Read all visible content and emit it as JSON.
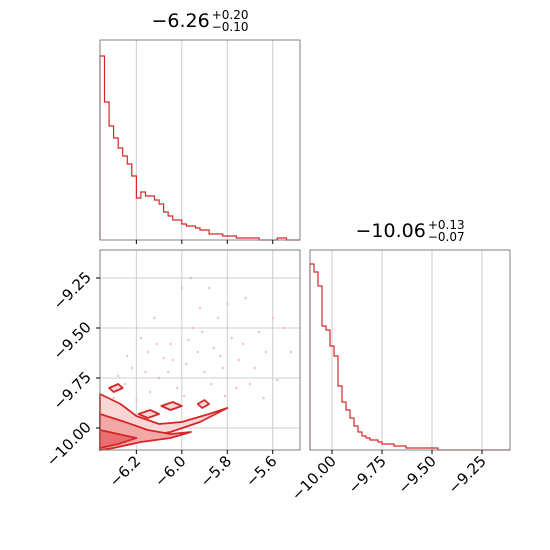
{
  "chart_data": [
    {
      "type": "histogram",
      "panel": "top-left",
      "title": {
        "main": "−6.26",
        "upper": "+0.20",
        "lower": "−0.10"
      },
      "xlim": [
        -6.36,
        -5.48
      ],
      "xticks": [
        -6.2,
        -6.0,
        -5.8,
        -5.6
      ],
      "grid": true,
      "color": "#d62728",
      "bin_edges": [
        -6.36,
        -6.34,
        -6.32,
        -6.3,
        -6.28,
        -6.26,
        -6.24,
        -6.22,
        -6.2,
        -6.18,
        -6.16,
        -6.14,
        -6.12,
        -6.1,
        -6.08,
        -6.06,
        -6.04,
        -6.02,
        -6.0,
        -5.98,
        -5.96,
        -5.94,
        -5.92,
        -5.9,
        -5.88,
        -5.86,
        -5.84,
        -5.82,
        -5.8,
        -5.78,
        -5.76,
        -5.74,
        -5.72,
        -5.7,
        -5.68,
        -5.66,
        -5.64,
        -5.62,
        -5.6,
        -5.58,
        -5.56,
        -5.54,
        -5.52,
        -5.5,
        -5.48
      ],
      "counts": [
        0.92,
        0.69,
        0.57,
        0.51,
        0.46,
        0.42,
        0.38,
        0.32,
        0.21,
        0.24,
        0.22,
        0.22,
        0.2,
        0.18,
        0.14,
        0.12,
        0.1,
        0.1,
        0.08,
        0.07,
        0.07,
        0.06,
        0.05,
        0.05,
        0.03,
        0.03,
        0.03,
        0.02,
        0.02,
        0.02,
        0.01,
        0.01,
        0.01,
        0.01,
        0.01,
        0.0,
        0.0,
        0.0,
        0.0,
        0.01,
        0.01,
        0.0,
        0.0,
        0.0
      ]
    },
    {
      "type": "contour",
      "panel": "bottom-left",
      "xlim": [
        -6.36,
        -5.48
      ],
      "ylim": [
        -10.11,
        -9.11
      ],
      "xticks": [
        -6.2,
        -6.0,
        -5.8,
        -5.6
      ],
      "yticks": [
        -10.0,
        -9.75,
        -9.5,
        -9.25
      ],
      "ytick_labels": [
        "−10.00",
        "−9.75",
        "−9.50",
        "−9.25"
      ],
      "xtick_labels": [
        "−6.2",
        "−6.0",
        "−5.8",
        "−5.6"
      ],
      "grid": true,
      "color": "#d62728",
      "contour_levels": [
        [
          [
            -6.36,
            -9.83
          ],
          [
            -6.27,
            -9.88
          ],
          [
            -6.2,
            -9.94
          ],
          [
            -6.1,
            -9.98
          ],
          [
            -6.0,
            -9.97
          ],
          [
            -5.88,
            -9.93
          ],
          [
            -5.8,
            -9.9
          ],
          [
            -5.92,
            -9.97
          ],
          [
            -6.05,
            -10.02
          ],
          [
            -6.2,
            -10.05
          ],
          [
            -6.3,
            -10.09
          ],
          [
            -6.36,
            -10.11
          ]
        ],
        [
          [
            -6.36,
            -9.93
          ],
          [
            -6.25,
            -9.97
          ],
          [
            -6.15,
            -10.01
          ],
          [
            -6.05,
            -10.03
          ],
          [
            -5.96,
            -10.02
          ],
          [
            -6.05,
            -10.05
          ],
          [
            -6.18,
            -10.07
          ],
          [
            -6.3,
            -10.1
          ],
          [
            -6.36,
            -10.11
          ]
        ],
        [
          [
            -6.36,
            -10.01
          ],
          [
            -6.28,
            -10.03
          ],
          [
            -6.2,
            -10.05
          ],
          [
            -6.28,
            -10.08
          ],
          [
            -6.36,
            -10.1
          ]
        ]
      ],
      "islands": [
        [
          [
            -6.19,
            -9.93
          ],
          [
            -6.14,
            -9.91
          ],
          [
            -6.1,
            -9.93
          ],
          [
            -6.15,
            -9.95
          ]
        ],
        [
          [
            -6.09,
            -9.89
          ],
          [
            -6.04,
            -9.87
          ],
          [
            -6.0,
            -9.89
          ],
          [
            -6.05,
            -9.91
          ]
        ],
        [
          [
            -5.93,
            -9.88
          ],
          [
            -5.9,
            -9.86
          ],
          [
            -5.88,
            -9.88
          ],
          [
            -5.91,
            -9.9
          ]
        ],
        [
          [
            -6.32,
            -9.8
          ],
          [
            -6.28,
            -9.78
          ],
          [
            -6.26,
            -9.8
          ],
          [
            -6.3,
            -9.82
          ]
        ]
      ],
      "points": [
        [
          -6.3,
          -9.85
        ],
        [
          -6.22,
          -9.7
        ],
        [
          -6.15,
          -9.62
        ],
        [
          -6.1,
          -9.75
        ],
        [
          -6.05,
          -9.58
        ],
        [
          -6.02,
          -9.8
        ],
        [
          -5.98,
          -9.68
        ],
        [
          -5.95,
          -9.5
        ],
        [
          -5.92,
          -9.4
        ],
        [
          -5.9,
          -9.72
        ],
        [
          -5.86,
          -9.6
        ],
        [
          -5.84,
          -9.45
        ],
        [
          -5.82,
          -9.7
        ],
        [
          -5.78,
          -9.55
        ],
        [
          -5.75,
          -9.66
        ],
        [
          -5.72,
          -9.35
        ],
        [
          -5.7,
          -9.78
        ],
        [
          -5.66,
          -9.52
        ],
        [
          -5.63,
          -9.62
        ],
        [
          -5.6,
          -9.45
        ],
        [
          -5.55,
          -9.5
        ],
        [
          -5.52,
          -9.62
        ],
        [
          -6.18,
          -9.55
        ],
        [
          -6.12,
          -9.45
        ],
        [
          -6.08,
          -9.65
        ],
        [
          -6.0,
          -9.3
        ],
        [
          -5.96,
          -9.25
        ],
        [
          -5.88,
          -9.3
        ],
        [
          -5.8,
          -9.38
        ],
        [
          -5.76,
          -9.8
        ],
        [
          -6.25,
          -9.78
        ],
        [
          -6.2,
          -9.86
        ],
        [
          -6.14,
          -9.82
        ],
        [
          -6.06,
          -9.72
        ],
        [
          -5.99,
          -9.84
        ],
        [
          -5.93,
          -9.62
        ],
        [
          -5.87,
          -9.78
        ],
        [
          -5.81,
          -9.84
        ],
        [
          -5.73,
          -9.58
        ],
        [
          -5.68,
          -9.7
        ],
        [
          -5.64,
          -9.85
        ],
        [
          -5.58,
          -9.76
        ],
        [
          -6.28,
          -9.74
        ],
        [
          -6.24,
          -9.64
        ],
        [
          -6.16,
          -9.72
        ],
        [
          -6.11,
          -9.58
        ],
        [
          -6.04,
          -9.66
        ],
        [
          -5.97,
          -9.56
        ],
        [
          -5.91,
          -9.52
        ],
        [
          -5.83,
          -9.64
        ]
      ]
    },
    {
      "type": "histogram",
      "panel": "bottom-right",
      "title": {
        "main": "−10.06",
        "upper": "+0.13",
        "lower": "−0.07"
      },
      "xlim": [
        -10.11,
        -9.11
      ],
      "xticks": [
        -10.0,
        -9.75,
        -9.5,
        -9.25
      ],
      "xtick_labels": [
        "−10.00",
        "−9.75",
        "−9.50",
        "−9.25"
      ],
      "grid": true,
      "color": "#d62728",
      "bin_edges": [
        -10.11,
        -10.09,
        -10.07,
        -10.05,
        -10.03,
        -10.01,
        -9.99,
        -9.97,
        -9.95,
        -9.93,
        -9.91,
        -9.89,
        -9.87,
        -9.85,
        -9.83,
        -9.81,
        -9.79,
        -9.77,
        -9.75,
        -9.73,
        -9.71,
        -9.69,
        -9.67,
        -9.65,
        -9.63,
        -9.61,
        -9.59,
        -9.57,
        -9.55,
        -9.53,
        -9.51,
        -9.49,
        -9.47,
        -9.45,
        -9.43,
        -9.41,
        -9.39,
        -9.37,
        -9.35,
        -9.33,
        -9.31,
        -9.29,
        -9.27,
        -9.25,
        -9.23,
        -9.21,
        -9.19,
        -9.17,
        -9.15,
        -9.13,
        -9.11
      ],
      "counts": [
        0.93,
        0.89,
        0.82,
        0.62,
        0.6,
        0.52,
        0.47,
        0.32,
        0.24,
        0.2,
        0.16,
        0.12,
        0.09,
        0.07,
        0.06,
        0.05,
        0.05,
        0.04,
        0.03,
        0.03,
        0.03,
        0.02,
        0.02,
        0.02,
        0.01,
        0.01,
        0.01,
        0.01,
        0.01,
        0.01,
        0.01,
        0.01,
        0.0,
        0.0,
        0.0,
        0.0,
        0.0,
        0.0,
        0.0,
        0.0,
        0.0,
        0.0,
        0.0,
        0.0,
        0.0,
        0.0,
        0.0,
        0.0,
        0.0,
        0.0
      ]
    }
  ]
}
